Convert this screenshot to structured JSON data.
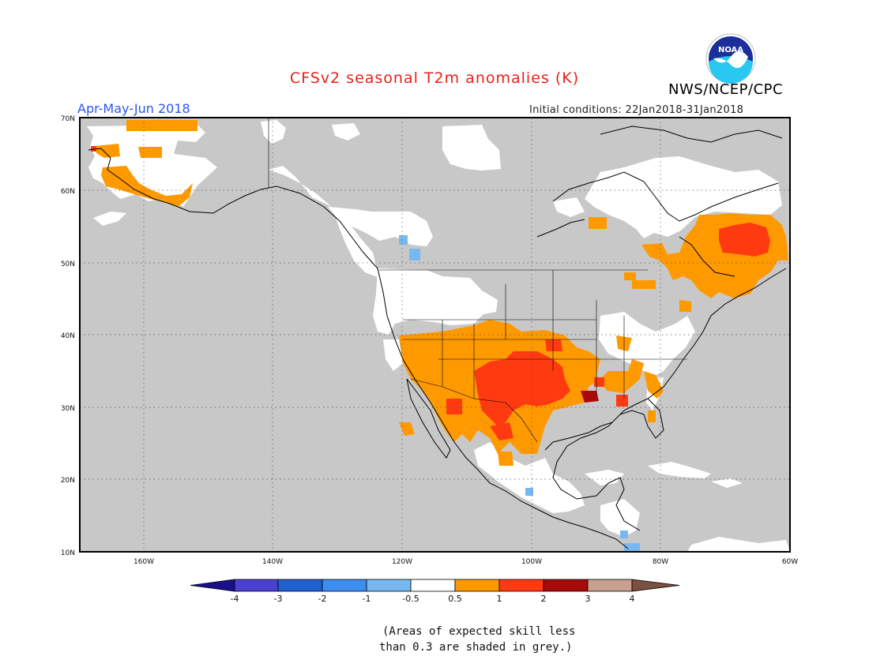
{
  "title": "CFSv2 seasonal T2m anomalies (K)",
  "period": "Apr-May-Jun 2018",
  "initial_conditions": "Initial conditions: 22Jan2018-31Jan2018",
  "agency": "NWS/NCEP/CPC",
  "logo_text": "NOAA",
  "note_line1": "(Areas of expected skill less",
  "note_line2": "than 0.3 are shaded in grey.)",
  "map": {
    "lat_labels": [
      "70N",
      "60N",
      "50N",
      "40N",
      "30N",
      "20N",
      "10N"
    ],
    "lon_labels": [
      "160W",
      "140W",
      "120W",
      "100W",
      "80W",
      "60W"
    ],
    "extent": {
      "lon": [
        -171,
        -60
      ],
      "lat": [
        10,
        70
      ]
    },
    "skill_mask_color": "#c8c8c8",
    "land_color": "#ffffff"
  },
  "colorbar": {
    "labels": [
      "-4",
      "-3",
      "-2",
      "-1",
      "-0.5",
      "0.5",
      "1",
      "2",
      "3",
      "4"
    ],
    "colors": [
      "#1a0f8c",
      "#4a3fd0",
      "#2060d0",
      "#3c8ff0",
      "#78b8f0",
      "#ffffff",
      "#ff9900",
      "#ff3a10",
      "#a80a0a",
      "#c8a090",
      "#7a5040"
    ]
  },
  "colors": {
    "title": "#e8201a",
    "period": "#2b55f5",
    "anom_0p5_1": "#ff9900",
    "anom_1_2": "#ff3a10",
    "anom_2_3": "#a80a0a",
    "anom_neg_0p5_1": "#78b8f0"
  }
}
